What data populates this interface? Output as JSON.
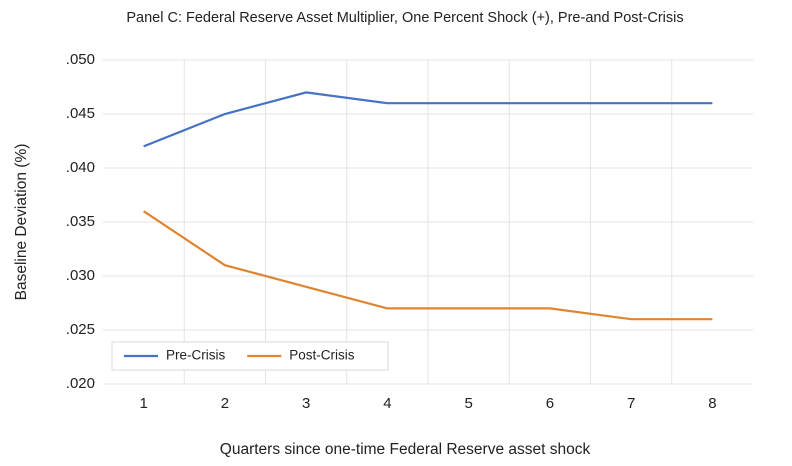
{
  "chart_data": {
    "type": "line",
    "title": "Panel C: Federal Reserve Asset Multiplier, One Percent Shock (+), Pre-and Post-Crisis",
    "x_label": "Quarters since one-time Federal Reserve asset shock",
    "y_label": "Baseline Deviation (%)",
    "categories": [
      "1",
      "2",
      "3",
      "4",
      "5",
      "6",
      "7",
      "8"
    ],
    "series": [
      {
        "name": "Pre-Crisis",
        "color": "#4472c4",
        "values": [
          0.042,
          0.045,
          0.047,
          0.046,
          0.046,
          0.046,
          0.046,
          0.046
        ]
      },
      {
        "name": "Post-Crisis",
        "color": "#e0852f",
        "values": [
          0.036,
          0.031,
          0.029,
          0.027,
          0.027,
          0.027,
          0.026,
          0.026
        ]
      }
    ],
    "ylim": [
      0.02,
      0.05
    ],
    "yticks": [
      {
        "value": 0.02,
        "label": ".020"
      },
      {
        "value": 0.025,
        "label": ".025"
      },
      {
        "value": 0.03,
        "label": ".030"
      },
      {
        "value": 0.035,
        "label": ".035"
      },
      {
        "value": 0.04,
        "label": ".040"
      },
      {
        "value": 0.045,
        "label": ".045"
      },
      {
        "value": 0.05,
        "label": ".050"
      }
    ],
    "grid": true,
    "legend": "lower left"
  }
}
